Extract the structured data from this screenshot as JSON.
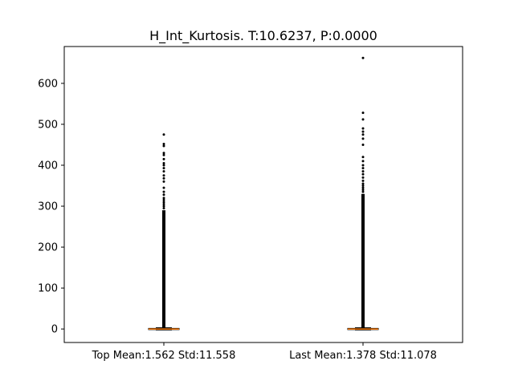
{
  "chart_data": {
    "type": "box",
    "title": "H_Int_Kurtosis. T:10.6237, P:0.0000",
    "xlabel": "",
    "ylabel": "",
    "categories": [
      "Top Mean:1.562 Std:11.558",
      "Last Mean:1.378 Std:11.078"
    ],
    "ylim": [
      -33,
      690
    ],
    "yticks": [
      0,
      100,
      200,
      300,
      400,
      500,
      600
    ],
    "grid": false,
    "series": [
      {
        "category": "Top Mean:1.562 Std:11.558",
        "box": {
          "q1": -1.5,
          "median": -0.2,
          "q3": 1.5,
          "whisker_low": -2.5,
          "whisker_high": 3
        },
        "dense_outlier_range": [
          3,
          290
        ],
        "outliers": [
          295,
          300,
          305,
          310,
          315,
          320,
          328,
          335,
          345,
          360,
          368,
          375,
          385,
          393,
          400,
          405,
          415,
          425,
          430,
          447,
          452,
          475
        ]
      },
      {
        "category": "Last Mean:1.378 Std:11.078",
        "box": {
          "q1": -1.5,
          "median": -0.2,
          "q3": 1.5,
          "whisker_low": -2.5,
          "whisker_high": 3
        },
        "dense_outlier_range": [
          3,
          330
        ],
        "outliers": [
          335,
          340,
          345,
          350,
          355,
          362,
          370,
          378,
          385,
          393,
          400,
          410,
          420,
          450,
          465,
          475,
          482,
          490,
          512,
          528,
          662
        ]
      }
    ],
    "colors": {
      "box": "#000000",
      "median": "#ff7f0e",
      "outlier": "#000000"
    }
  }
}
